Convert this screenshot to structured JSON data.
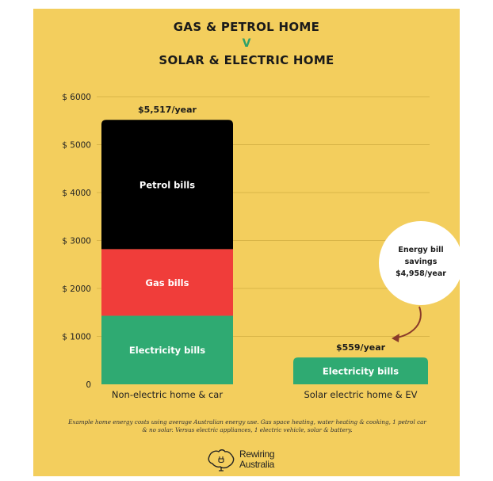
{
  "header": {
    "title_line1": "GAS & PETROL HOME",
    "versus": "V",
    "title_line2": "SOLAR & ELECTRIC HOME"
  },
  "colors": {
    "background": "#f3ce5d",
    "petrol": "#000000",
    "gas": "#f03d3a",
    "electricity": "#2faa72",
    "accent": "#2fa06a",
    "arrow": "#8a3b2a"
  },
  "chart_data": {
    "type": "bar",
    "stacked": true,
    "categories": [
      "Non-electric home & car",
      "Solar electric home & EV"
    ],
    "series": [
      {
        "name": "Electricity bills",
        "values": [
          1430,
          559
        ],
        "color": "#2faa72"
      },
      {
        "name": "Gas bills",
        "values": [
          1390,
          0
        ],
        "color": "#f03d3a"
      },
      {
        "name": "Petrol bills",
        "values": [
          2697,
          0
        ],
        "color": "#000000"
      }
    ],
    "totals": [
      5517,
      559
    ],
    "total_labels": [
      "$5,517/year",
      "$559/year"
    ],
    "y_ticks": [
      {
        "value": 0,
        "label": "0"
      },
      {
        "value": 1000,
        "label": "$  1000"
      },
      {
        "value": 2000,
        "label": "$  2000"
      },
      {
        "value": 3000,
        "label": "$  3000"
      },
      {
        "value": 4000,
        "label": "$  4000"
      },
      {
        "value": 5000,
        "label": "$  5000"
      },
      {
        "value": 6000,
        "label": "$  6000"
      }
    ],
    "ylim": [
      0,
      6000
    ],
    "grid": true,
    "annotation": {
      "lines": [
        "Energy bill",
        "savings",
        "$4,958/year"
      ],
      "savings_value": 4958
    },
    "title": "",
    "xlabel": "",
    "ylabel": ""
  },
  "footnote": "Example home energy costs using average Australian energy use. Gas space heating, water heating & cooking, 1 petrol car & no solar. Versus electric appliances, 1 electric vehicle, solar & battery.",
  "logo": {
    "line1": "Rewiring",
    "line2": "Australia",
    "icon": "australia-map-plug-icon"
  }
}
